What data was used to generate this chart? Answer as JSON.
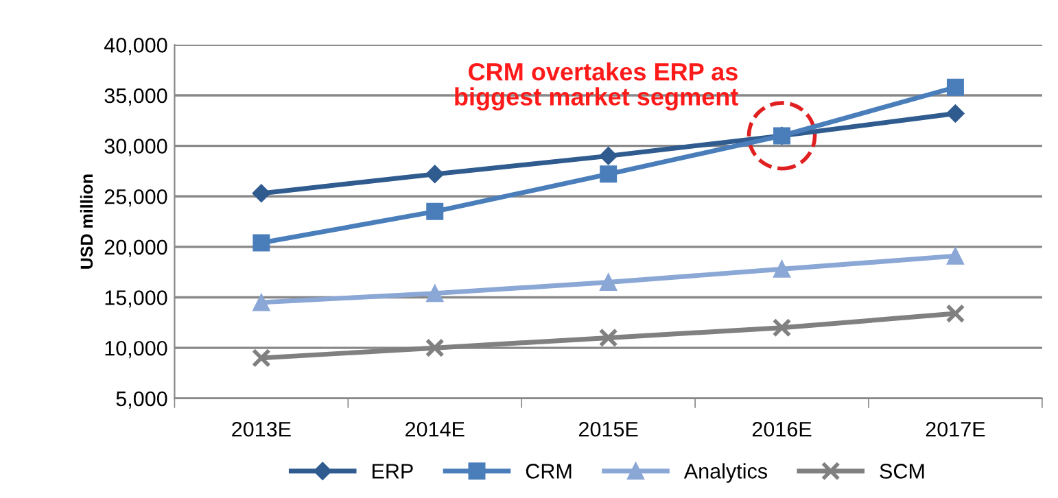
{
  "chart_data": {
    "type": "line",
    "ylabel": "USD million",
    "categories": [
      "2013E",
      "2014E",
      "2015E",
      "2016E",
      "2017E"
    ],
    "series": [
      {
        "name": "ERP",
        "color": "#2f5b8f",
        "marker": "diamond",
        "values": [
          25300,
          27200,
          29000,
          31000,
          33200
        ]
      },
      {
        "name": "CRM",
        "color": "#4a7ebb",
        "marker": "square",
        "values": [
          20400,
          23500,
          27200,
          31000,
          35800
        ]
      },
      {
        "name": "Analytics",
        "color": "#8aa7d6",
        "marker": "triangle",
        "values": [
          14500,
          15400,
          16500,
          17800,
          19100
        ]
      },
      {
        "name": "SCM",
        "color": "#808080",
        "marker": "cross",
        "values": [
          9000,
          10000,
          11000,
          12000,
          13400
        ]
      }
    ],
    "ylim": [
      5000,
      40000
    ],
    "yticks": [
      {
        "value": 5000,
        "label": "5,000"
      },
      {
        "value": 10000,
        "label": "10,000"
      },
      {
        "value": 15000,
        "label": "15,000"
      },
      {
        "value": 20000,
        "label": "20,000"
      },
      {
        "value": 25000,
        "label": "25,000"
      },
      {
        "value": 30000,
        "label": "30,000"
      },
      {
        "value": 35000,
        "label": "35,000"
      },
      {
        "value": 40000,
        "label": "40,000"
      }
    ],
    "grid": "y",
    "legend": "bottom",
    "annotations": [
      {
        "text": "CRM overtakes ERP as\nbiggest market segment",
        "x": "2016E",
        "y": 31000
      }
    ]
  }
}
